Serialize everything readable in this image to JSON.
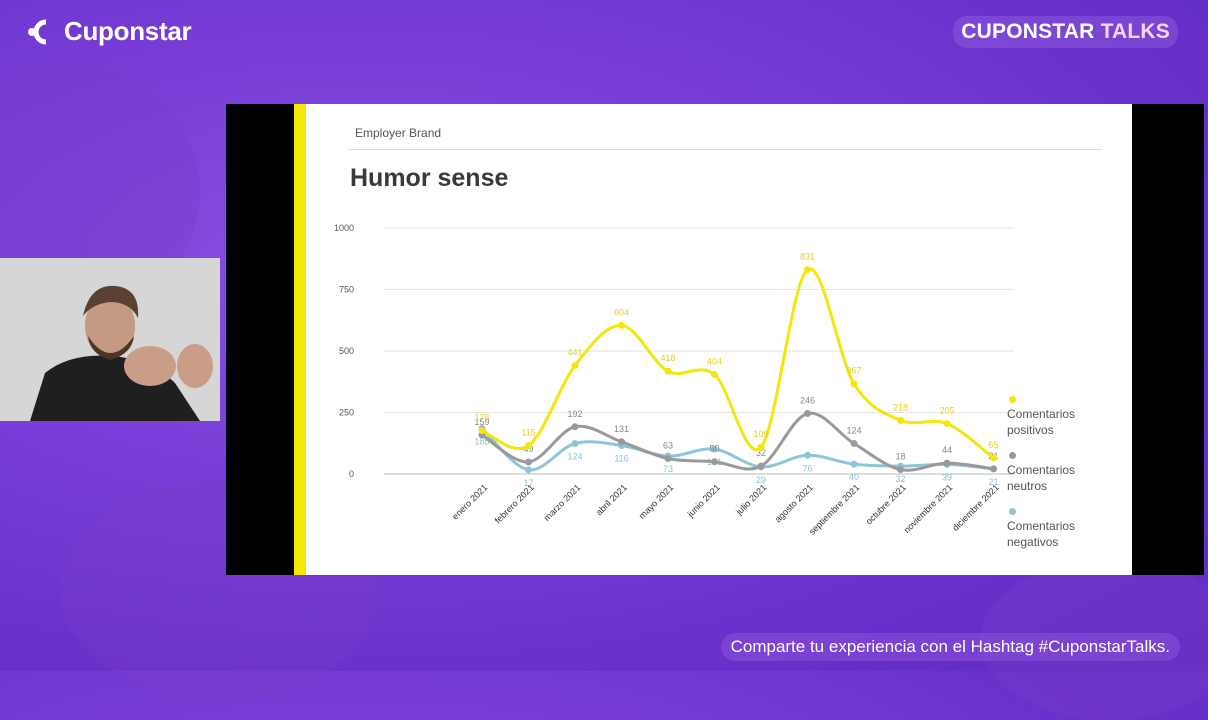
{
  "header": {
    "brand": "Cuponstar",
    "talks_prefix": "CUPONSTAR",
    "talks_suffix": "TALKS"
  },
  "slide": {
    "section": "Employer Brand",
    "title": "Humor sense"
  },
  "footer": {
    "hashtag_text": "Comparte tu experiencia con el Hashtag #CuponstarTalks."
  },
  "colors": {
    "background": "#7a3fd8",
    "accent_bar": "#f6e805",
    "positivos": "#f5e50a",
    "neutros": "#9a9a9a",
    "negativos": "#8cc6d8"
  },
  "chart_data": {
    "type": "line",
    "categories": [
      "enero 2021",
      "febrero 2021",
      "marzo 2021",
      "abril 2021",
      "mayo 2021",
      "junio 2021",
      "julio 2021",
      "agosto 2021",
      "septiembre 2021",
      "octubre 2021",
      "noviembre 2021",
      "diciembre 2021"
    ],
    "ylim": [
      0,
      1000
    ],
    "yticks": [
      "0",
      "250",
      "500",
      "750",
      "1000"
    ],
    "grid": true,
    "legend_position": "right",
    "series": [
      {
        "name": "Comentarios positivos",
        "key": "positivos",
        "values": [
          176,
          115,
          441,
          604,
          418,
          404,
          109,
          831,
          367,
          218,
          205,
          65
        ]
      },
      {
        "name": "Comentarios neutros",
        "key": "neutros",
        "values": [
          159,
          49,
          192,
          131,
          63,
          50,
          32,
          246,
          124,
          18,
          44,
          21
        ]
      },
      {
        "name": "Comentarios negativos",
        "key": "negativos",
        "values": [
          185,
          17,
          124,
          116,
          73,
          101,
          29,
          76,
          40,
          32,
          39,
          21
        ]
      }
    ]
  }
}
